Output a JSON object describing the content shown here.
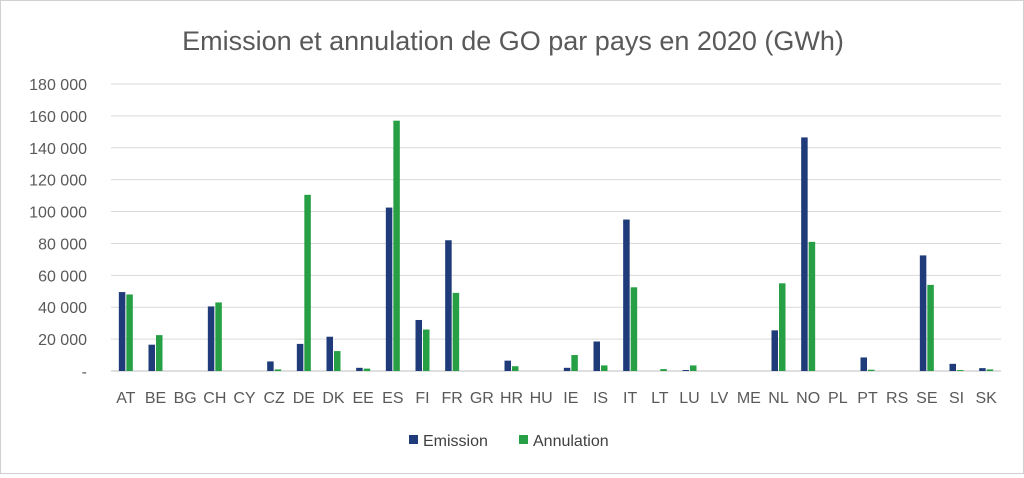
{
  "chart_data": {
    "type": "bar",
    "title": "Emission et annulation de GO par pays en 2020 (GWh)",
    "xlabel": "",
    "ylabel": "",
    "ylim": [
      0,
      180000
    ],
    "yticks": [
      0,
      20000,
      40000,
      60000,
      80000,
      100000,
      120000,
      140000,
      160000,
      180000
    ],
    "ytick_labels": [
      "-",
      "20 000",
      "40 000",
      "60 000",
      "80 000",
      "100 000",
      "120 000",
      "140 000",
      "160 000",
      "180 000"
    ],
    "grid": true,
    "legend_position": "bottom",
    "categories": [
      "AT",
      "BE",
      "BG",
      "CH",
      "CY",
      "CZ",
      "DE",
      "DK",
      "EE",
      "ES",
      "FI",
      "FR",
      "GR",
      "HR",
      "HU",
      "IE",
      "IS",
      "IT",
      "LT",
      "LU",
      "LV",
      "ME",
      "NL",
      "NO",
      "PL",
      "PT",
      "RS",
      "SE",
      "SI",
      "SK"
    ],
    "series": [
      {
        "name": "Emission",
        "color": "#1f3b7a",
        "values": [
          49500,
          16500,
          0,
          40500,
          0,
          6000,
          17000,
          21500,
          2000,
          102500,
          32000,
          82000,
          0,
          6500,
          0,
          2000,
          18500,
          95000,
          0,
          600,
          0,
          0,
          25500,
          146500,
          0,
          8500,
          0,
          72500,
          4500,
          1800
        ]
      },
      {
        "name": "Annulation",
        "color": "#27a045",
        "values": [
          48000,
          22500,
          0,
          43000,
          0,
          1000,
          110500,
          12500,
          1500,
          157000,
          26000,
          49000,
          0,
          3000,
          0,
          10000,
          3500,
          52500,
          1200,
          3500,
          0,
          0,
          55000,
          81000,
          0,
          800,
          0,
          54000,
          600,
          1000
        ]
      }
    ]
  }
}
